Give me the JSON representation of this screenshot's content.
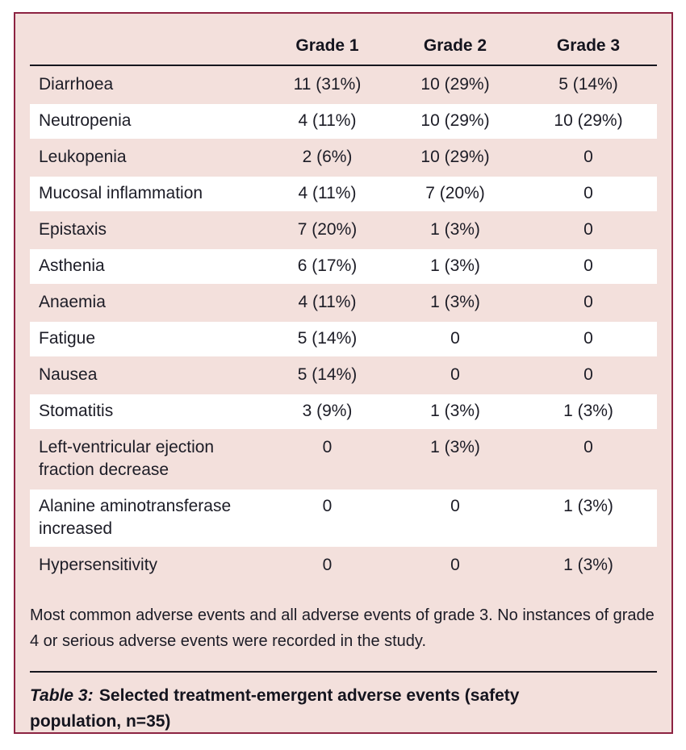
{
  "table": {
    "columns": [
      "",
      "Grade 1",
      "Grade 2",
      "Grade 3"
    ],
    "rows": [
      {
        "label": "Diarrhoea",
        "grade1": "11 (31%)",
        "grade2": "10 (29%)",
        "grade3": "5 (14%)"
      },
      {
        "label": "Neutropenia",
        "grade1": "4 (11%)",
        "grade2": "10 (29%)",
        "grade3": "10 (29%)"
      },
      {
        "label": "Leukopenia",
        "grade1": "2 (6%)",
        "grade2": "10 (29%)",
        "grade3": "0"
      },
      {
        "label": "Mucosal inflammation",
        "grade1": "4 (11%)",
        "grade2": "7 (20%)",
        "grade3": "0"
      },
      {
        "label": "Epistaxis",
        "grade1": "7 (20%)",
        "grade2": "1 (3%)",
        "grade3": "0"
      },
      {
        "label": "Asthenia",
        "grade1": "6 (17%)",
        "grade2": "1 (3%)",
        "grade3": "0"
      },
      {
        "label": "Anaemia",
        "grade1": "4 (11%)",
        "grade2": "1 (3%)",
        "grade3": "0"
      },
      {
        "label": "Fatigue",
        "grade1": "5 (14%)",
        "grade2": "0",
        "grade3": "0"
      },
      {
        "label": "Nausea",
        "grade1": "5 (14%)",
        "grade2": "0",
        "grade3": "0"
      },
      {
        "label": "Stomatitis",
        "grade1": "3 (9%)",
        "grade2": "1 (3%)",
        "grade3": "1 (3%)"
      },
      {
        "label": "Left-ventricular ejection fraction decrease",
        "grade1": "0",
        "grade2": "1 (3%)",
        "grade3": "0"
      },
      {
        "label": "Alanine aminotransferase increased",
        "grade1": "0",
        "grade2": "0",
        "grade3": "1 (3%)"
      },
      {
        "label": "Hypersensitivity",
        "grade1": "0",
        "grade2": "0",
        "grade3": "1 (3%)"
      }
    ]
  },
  "footnote": "Most common adverse events and all adverse events of grade 3. No instances of grade 4 or serious adverse events were recorded in the study.",
  "caption": {
    "prefix": "Table 3:",
    "text": "Selected treatment-emergent adverse events (safety population, n=35)"
  },
  "colors": {
    "panel_background": "#f3e0dc",
    "panel_border": "#8c2342",
    "stripe_white": "#ffffff",
    "text": "#1c1c26",
    "rule": "#16161e"
  }
}
